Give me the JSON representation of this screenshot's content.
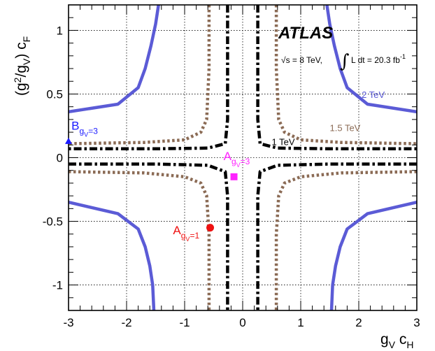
{
  "chart_data": {
    "type": "line",
    "xlabel": {
      "main": "g",
      "sub1": "V",
      "main2": " c",
      "sub2": "H"
    },
    "ylabel": {
      "open": "(g",
      "sup": "2",
      "mid": "/g",
      "sub": "V",
      "close": ") c",
      "sub2": "F"
    },
    "xlim": [
      -3,
      3
    ],
    "ylim": [
      -1.2,
      1.2
    ],
    "grid": true,
    "x_ticks": [
      {
        "v": -3,
        "label": "-3"
      },
      {
        "v": -2,
        "label": "-2"
      },
      {
        "v": -1,
        "label": "-1"
      },
      {
        "v": 0,
        "label": "0"
      },
      {
        "v": 1,
        "label": "1"
      },
      {
        "v": 2,
        "label": "2"
      },
      {
        "v": 3,
        "label": "3"
      }
    ],
    "y_ticks": [
      {
        "v": -1,
        "label": "-1"
      },
      {
        "v": -0.5,
        "label": "-0.5"
      },
      {
        "v": 0,
        "label": "0"
      },
      {
        "v": 0.5,
        "label": "0.5"
      },
      {
        "v": 1,
        "label": "1"
      }
    ],
    "experiment": "ATLAS",
    "energy_text": "√s = 8 TeV,",
    "lumi": {
      "integral": "∫",
      "text": "L dt = 20.3 fb",
      "sup": "-1"
    },
    "series": [
      {
        "name": "2 TeV",
        "color": "#5b5bd6",
        "style": "solid",
        "segments": [
          [
            [
              -1.45,
              1.2
            ],
            [
              -1.5,
              1.05
            ],
            [
              -1.58,
              0.88
            ],
            [
              -1.68,
              0.7
            ],
            [
              -1.8,
              0.55
            ],
            [
              -2.15,
              0.42
            ],
            [
              -3.0,
              0.36
            ]
          ],
          [
            [
              1.45,
              1.2
            ],
            [
              1.5,
              1.05
            ],
            [
              1.58,
              0.88
            ],
            [
              1.68,
              0.7
            ],
            [
              1.8,
              0.55
            ],
            [
              2.15,
              0.42
            ],
            [
              3.0,
              0.36
            ]
          ],
          [
            [
              -3.0,
              -0.35
            ],
            [
              -2.15,
              -0.44
            ],
            [
              -1.8,
              -0.56
            ],
            [
              -1.68,
              -0.7
            ],
            [
              -1.6,
              -0.85
            ],
            [
              -1.55,
              -1.0
            ],
            [
              -1.53,
              -1.2
            ]
          ],
          [
            [
              3.0,
              -0.35
            ],
            [
              2.15,
              -0.44
            ],
            [
              1.8,
              -0.56
            ],
            [
              1.68,
              -0.7
            ],
            [
              1.6,
              -0.85
            ],
            [
              1.55,
              -1.0
            ],
            [
              1.53,
              -1.2
            ]
          ]
        ]
      },
      {
        "name": "1.5 TeV",
        "color": "#8b6b55",
        "style": "dotted",
        "segments": [
          [
            [
              -0.58,
              1.2
            ],
            [
              -0.58,
              0.7
            ],
            [
              -0.62,
              0.3
            ],
            [
              -0.72,
              0.2
            ],
            [
              -1.0,
              0.14
            ],
            [
              -1.7,
              0.12
            ],
            [
              -3.0,
              0.11
            ]
          ],
          [
            [
              0.58,
              1.2
            ],
            [
              0.58,
              0.7
            ],
            [
              0.62,
              0.3
            ],
            [
              0.72,
              0.2
            ],
            [
              1.0,
              0.14
            ],
            [
              1.7,
              0.12
            ],
            [
              3.0,
              0.11
            ]
          ],
          [
            [
              -3.0,
              -0.11
            ],
            [
              -1.7,
              -0.12
            ],
            [
              -1.0,
              -0.15
            ],
            [
              -0.72,
              -0.2
            ],
            [
              -0.62,
              -0.3
            ],
            [
              -0.58,
              -0.6
            ],
            [
              -0.58,
              -1.2
            ]
          ],
          [
            [
              3.0,
              -0.11
            ],
            [
              1.7,
              -0.12
            ],
            [
              1.0,
              -0.15
            ],
            [
              0.72,
              -0.2
            ],
            [
              0.62,
              -0.3
            ],
            [
              0.58,
              -0.6
            ],
            [
              0.58,
              -1.2
            ]
          ]
        ]
      },
      {
        "name": "1 TeV",
        "color": "#000000",
        "style": "dashdot",
        "segments": [
          [
            [
              -0.26,
              1.2
            ],
            [
              -0.26,
              0.3
            ],
            [
              -0.3,
              0.11
            ],
            [
              -0.6,
              0.075
            ],
            [
              -1.5,
              0.07
            ],
            [
              -3.0,
              0.07
            ]
          ],
          [
            [
              0.26,
              1.2
            ],
            [
              0.26,
              0.3
            ],
            [
              0.3,
              0.11
            ],
            [
              0.6,
              0.075
            ],
            [
              1.5,
              0.07
            ],
            [
              3.0,
              0.07
            ]
          ],
          [
            [
              -3.0,
              -0.05
            ],
            [
              -1.5,
              -0.05
            ],
            [
              -0.6,
              -0.06
            ],
            [
              -0.3,
              -0.11
            ],
            [
              -0.26,
              -0.3
            ],
            [
              -0.26,
              -1.2
            ]
          ],
          [
            [
              3.0,
              -0.05
            ],
            [
              1.5,
              -0.05
            ],
            [
              0.6,
              -0.06
            ],
            [
              0.3,
              -0.11
            ],
            [
              0.26,
              -0.3
            ],
            [
              0.26,
              -1.2
            ]
          ]
        ]
      }
    ],
    "curve_labels": [
      {
        "text": "2 TeV",
        "x": 2.05,
        "y": 0.47,
        "color": "#5b5bd6"
      },
      {
        "text": "1.5 TeV",
        "x": 1.5,
        "y": 0.21,
        "color": "#8b6b55"
      },
      {
        "text": "1 TeV",
        "x": 0.5,
        "y": 0.1,
        "color": "#000000"
      }
    ],
    "benchmarks": [
      {
        "main": "B",
        "sub1": "g",
        "sub2": "V",
        "sub3": "=3",
        "x": -3.0,
        "y": 0.13,
        "marker": "triangle",
        "color": "#1a1aff",
        "tx": -2.95,
        "ty": 0.22
      },
      {
        "main": "A",
        "sub1": "g",
        "sub2": "V",
        "sub3": "=3",
        "x": -0.15,
        "y": -0.15,
        "marker": "square",
        "color": "#ff22ff",
        "tx": -0.33,
        "ty": -0.02
      },
      {
        "main": "A",
        "sub1": "g",
        "sub2": "V",
        "sub3": "=1",
        "x": -0.56,
        "y": -0.55,
        "marker": "circle",
        "color": "#ee1111",
        "tx": -1.2,
        "ty": -0.6
      }
    ]
  }
}
